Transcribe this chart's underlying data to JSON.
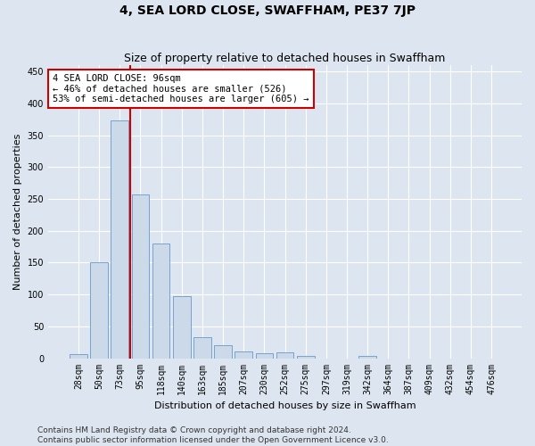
{
  "title": "4, SEA LORD CLOSE, SWAFFHAM, PE37 7JP",
  "subtitle": "Size of property relative to detached houses in Swaffham",
  "xlabel": "Distribution of detached houses by size in Swaffham",
  "ylabel": "Number of detached properties",
  "bar_labels": [
    "28sqm",
    "50sqm",
    "73sqm",
    "95sqm",
    "118sqm",
    "140sqm",
    "163sqm",
    "185sqm",
    "207sqm",
    "230sqm",
    "252sqm",
    "275sqm",
    "297sqm",
    "319sqm",
    "342sqm",
    "364sqm",
    "387sqm",
    "409sqm",
    "432sqm",
    "454sqm",
    "476sqm"
  ],
  "bar_values": [
    7,
    150,
    373,
    257,
    180,
    97,
    33,
    20,
    11,
    8,
    9,
    4,
    0,
    0,
    4,
    0,
    0,
    0,
    0,
    0,
    0
  ],
  "bar_color": "#ccd9e8",
  "bar_edge_color": "#6699cc",
  "red_line_x": 2.5,
  "red_line_color": "#cc0000",
  "annotation_text": "4 SEA LORD CLOSE: 96sqm\n← 46% of detached houses are smaller (526)\n53% of semi-detached houses are larger (605) →",
  "annotation_box_facecolor": "#ffffff",
  "annotation_box_edgecolor": "#cc0000",
  "ylim": [
    0,
    460
  ],
  "yticks": [
    0,
    50,
    100,
    150,
    200,
    250,
    300,
    350,
    400,
    450
  ],
  "background_color": "#dde6f0",
  "plot_bg_color": "#dde6f0",
  "footer_text": "Contains HM Land Registry data © Crown copyright and database right 2024.\nContains public sector information licensed under the Open Government Licence v3.0.",
  "title_fontsize": 10,
  "subtitle_fontsize": 9,
  "axis_label_fontsize": 8,
  "tick_fontsize": 7,
  "annotation_fontsize": 7.5,
  "footer_fontsize": 6.5
}
